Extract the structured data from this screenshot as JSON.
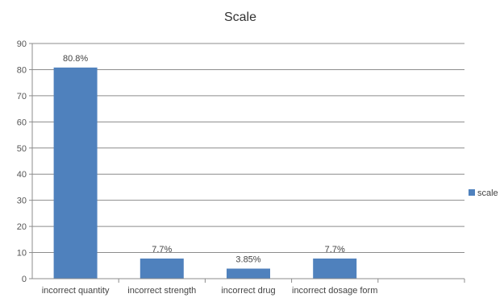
{
  "chart_data": {
    "type": "bar",
    "title": "Scale",
    "categories": [
      "incorrect quantity",
      "incorrect strength",
      "incorrect drug",
      "incorrect dosage form",
      ""
    ],
    "series": [
      {
        "name": "scale",
        "values": [
          80.8,
          7.7,
          3.85,
          7.7,
          null
        ],
        "labels": [
          "80.8%",
          "7.7%",
          "3.85%",
          "7.7%",
          ""
        ],
        "color": "#4f81bd"
      }
    ],
    "ylim": [
      0,
      90
    ],
    "yticks": [
      "0",
      "10",
      "20",
      "30",
      "40",
      "50",
      "60",
      "70",
      "80",
      "90"
    ],
    "grid": true,
    "legend": "right"
  }
}
